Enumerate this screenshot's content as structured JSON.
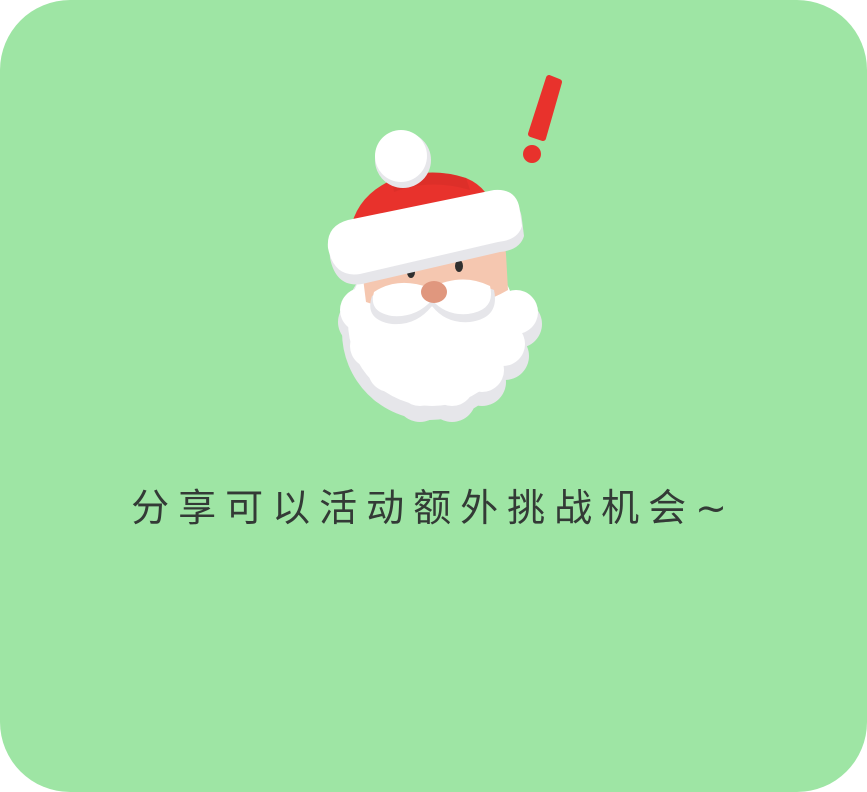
{
  "dialog": {
    "message": "分享可以活动额外挑战机会~",
    "illustration": "santa-claus-icon",
    "alert_icon": "exclamation-icon"
  },
  "colors": {
    "background": "#9ee5a4",
    "hat_red": "#e8322c",
    "exclamation_red": "#e8322c",
    "fur_white": "#ffffff",
    "skin": "#f5c7b0",
    "nose": "#e0977e",
    "text": "#333a36"
  }
}
